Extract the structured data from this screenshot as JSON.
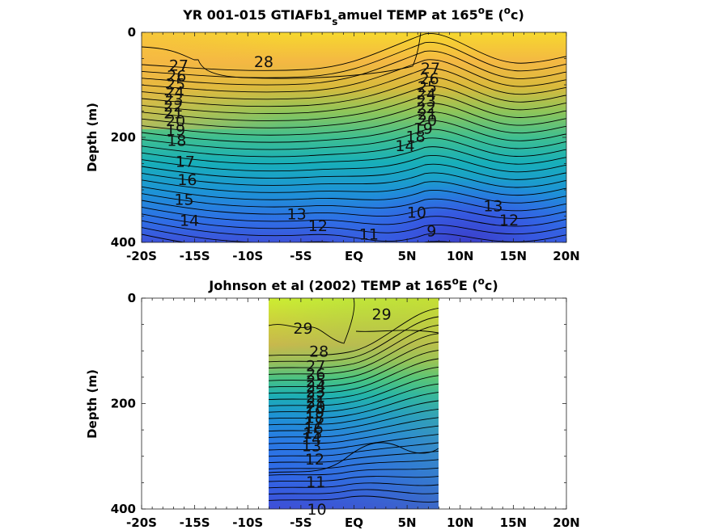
{
  "chart_data": [
    {
      "type": "heatmap",
      "subtype": "filled-contour",
      "title_main": "YR 001-015 GTIAFb1",
      "title_sub": "s",
      "title_rest": "amuel TEMP at 165",
      "title_sup": "o",
      "title_end_a": "E (",
      "title_end_sup": "o",
      "title_end_b": "c)",
      "xlabel": "",
      "ylabel": "Depth (m)",
      "x_tick_labels": [
        "-20S",
        "-15S",
        "-10S",
        "-5S",
        "EQ",
        "5N",
        "10N",
        "15N",
        "20N"
      ],
      "x_tick_values": [
        -20,
        -15,
        -10,
        -5,
        0,
        5,
        10,
        15,
        20
      ],
      "y_tick_labels": [
        "0",
        "200",
        "400"
      ],
      "y_tick_values": [
        0,
        200,
        400
      ],
      "xlim": [
        -20,
        20
      ],
      "ylim": [
        0,
        400
      ],
      "colormap": "parula",
      "contour_labels": [
        {
          "text": "28",
          "lat": -8.5,
          "depth": 55
        },
        {
          "text": "27",
          "lat": -16.5,
          "depth": 62
        },
        {
          "text": "26",
          "lat": -16.7,
          "depth": 82
        },
        {
          "text": "25",
          "lat": -16.8,
          "depth": 98
        },
        {
          "text": "24",
          "lat": -16.9,
          "depth": 113
        },
        {
          "text": "23",
          "lat": -17.0,
          "depth": 127
        },
        {
          "text": "22",
          "lat": -17.0,
          "depth": 140
        },
        {
          "text": "21",
          "lat": -17.0,
          "depth": 153
        },
        {
          "text": "20",
          "lat": -16.8,
          "depth": 168
        },
        {
          "text": "19",
          "lat": -16.8,
          "depth": 185
        },
        {
          "text": "18",
          "lat": -16.7,
          "depth": 205
        },
        {
          "text": "17",
          "lat": -15.9,
          "depth": 245
        },
        {
          "text": "16",
          "lat": -15.7,
          "depth": 280
        },
        {
          "text": "15",
          "lat": -16.0,
          "depth": 318
        },
        {
          "text": "14",
          "lat": -15.5,
          "depth": 358
        },
        {
          "text": "13",
          "lat": -5.4,
          "depth": 345
        },
        {
          "text": "12",
          "lat": -3.4,
          "depth": 368
        },
        {
          "text": "11",
          "lat": 1.4,
          "depth": 384
        },
        {
          "text": "10",
          "lat": 5.9,
          "depth": 342
        },
        {
          "text": "9",
          "lat": 7.3,
          "depth": 378
        },
        {
          "text": "27",
          "lat": 7.2,
          "depth": 68
        },
        {
          "text": "26",
          "lat": 7.1,
          "depth": 88
        },
        {
          "text": "25",
          "lat": 6.9,
          "depth": 103
        },
        {
          "text": "24",
          "lat": 6.8,
          "depth": 117
        },
        {
          "text": "23",
          "lat": 6.8,
          "depth": 130
        },
        {
          "text": "22",
          "lat": 6.8,
          "depth": 143
        },
        {
          "text": "21",
          "lat": 6.9,
          "depth": 155
        },
        {
          "text": "20",
          "lat": 6.9,
          "depth": 167
        },
        {
          "text": "19",
          "lat": 6.5,
          "depth": 182
        },
        {
          "text": "18",
          "lat": 5.8,
          "depth": 198
        },
        {
          "text": "14",
          "lat": 4.8,
          "depth": 215
        },
        {
          "text": "13",
          "lat": 13.1,
          "depth": 330
        },
        {
          "text": "12",
          "lat": 14.6,
          "depth": 357
        }
      ]
    },
    {
      "type": "heatmap",
      "subtype": "filled-contour",
      "title_main": "Johnson et al (2002) TEMP at 165",
      "title_sup": "o",
      "title_end_a": "E (",
      "title_end_sup": "o",
      "title_end_b": "c)",
      "xlabel": "",
      "ylabel": "Depth (m)",
      "x_tick_labels": [
        "-20S",
        "-15S",
        "-10S",
        "-5S",
        "EQ",
        "5N",
        "10N",
        "15N",
        "20N"
      ],
      "x_tick_values": [
        -20,
        -15,
        -10,
        -5,
        0,
        5,
        10,
        15,
        20
      ],
      "y_tick_labels": [
        "0",
        "200",
        "400"
      ],
      "y_tick_values": [
        0,
        200,
        400
      ],
      "xlim": [
        -20,
        20
      ],
      "ylim": [
        0,
        400
      ],
      "data_lat_range": [
        -8,
        8
      ],
      "colormap": "parula",
      "contour_labels": [
        {
          "text": "29",
          "lat": 2.6,
          "depth": 30
        },
        {
          "text": "29",
          "lat": -4.8,
          "depth": 57
        },
        {
          "text": "28",
          "lat": -3.3,
          "depth": 100
        },
        {
          "text": "27",
          "lat": -3.6,
          "depth": 128
        },
        {
          "text": "26",
          "lat": -3.6,
          "depth": 143
        },
        {
          "text": "25",
          "lat": -3.6,
          "depth": 156
        },
        {
          "text": "24",
          "lat": -3.6,
          "depth": 166
        },
        {
          "text": "23",
          "lat": -3.6,
          "depth": 176
        },
        {
          "text": "22",
          "lat": -3.6,
          "depth": 186
        },
        {
          "text": "21",
          "lat": -3.6,
          "depth": 196
        },
        {
          "text": "20",
          "lat": -3.6,
          "depth": 206
        },
        {
          "text": "19",
          "lat": -3.7,
          "depth": 216
        },
        {
          "text": "18",
          "lat": -3.7,
          "depth": 226
        },
        {
          "text": "17",
          "lat": -3.8,
          "depth": 236
        },
        {
          "text": "16",
          "lat": -3.8,
          "depth": 246
        },
        {
          "text": "15",
          "lat": -3.9,
          "depth": 256
        },
        {
          "text": "14",
          "lat": -4.0,
          "depth": 266
        },
        {
          "text": "13",
          "lat": -4.0,
          "depth": 280
        },
        {
          "text": "12",
          "lat": -3.7,
          "depth": 305
        },
        {
          "text": "11",
          "lat": -3.6,
          "depth": 348
        },
        {
          "text": "10",
          "lat": -3.5,
          "depth": 400
        }
      ]
    }
  ]
}
